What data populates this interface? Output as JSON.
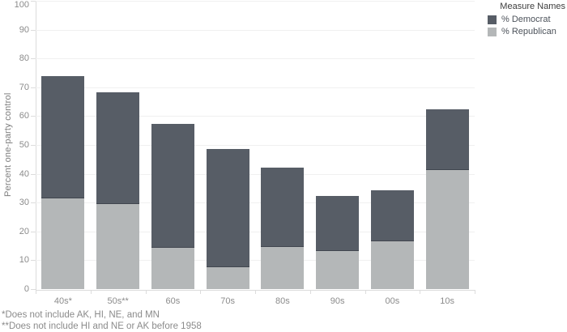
{
  "chart_data": {
    "type": "bar",
    "stacked": true,
    "title": "",
    "categories": [
      "40s*",
      "50s**",
      "60s",
      "70s",
      "80s",
      "90s",
      "00s",
      "10s"
    ],
    "series": [
      {
        "name": "% Democrat",
        "color": "#575d66",
        "values": [
          42.3,
          38.7,
          43.1,
          41.1,
          27.7,
          19.0,
          17.7,
          21.0
        ]
      },
      {
        "name": "% Republican",
        "color": "#b4b7b8",
        "values": [
          31.5,
          29.5,
          14.2,
          7.5,
          14.5,
          13.2,
          16.7,
          41.3
        ]
      }
    ],
    "stack_order_bottom_to_top": [
      "% Republican",
      "% Democrat"
    ],
    "stacked_totals": [
      73.8,
      68.2,
      57.3,
      48.6,
      42.2,
      32.2,
      34.4,
      62.3
    ],
    "xlabel": "",
    "ylabel": "Percent one-party control",
    "ylim": [
      0,
      100
    ],
    "yticks": [
      0,
      10,
      20,
      30,
      40,
      50,
      60,
      70,
      80,
      90,
      100
    ],
    "grid": true,
    "legend": {
      "title": "Measure Names",
      "position": "top-right",
      "entries": [
        "% Democrat",
        "% Republican"
      ]
    }
  },
  "footnotes": [
    "*Does not include AK, HI, NE, and MN",
    "**Does not include HI and NE or AK before 1958"
  ],
  "colors": {
    "democrat": "#575d66",
    "republican": "#b4b7b8",
    "gridline": "#f0f0f0",
    "axis_line": "#dcdcdc",
    "tick_text": "#8b8b8b",
    "legend_title_text": "#3d3d3d",
    "legend_item_text": "#4c525a"
  }
}
